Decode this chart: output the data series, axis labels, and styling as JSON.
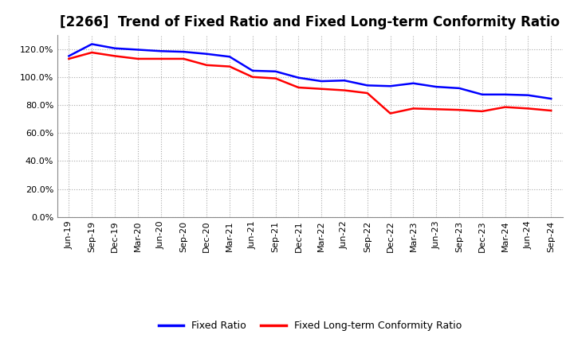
{
  "title": "[2266]  Trend of Fixed Ratio and Fixed Long-term Conformity Ratio",
  "x_labels": [
    "Jun-19",
    "Sep-19",
    "Dec-19",
    "Mar-20",
    "Jun-20",
    "Sep-20",
    "Dec-20",
    "Mar-21",
    "Jun-21",
    "Sep-21",
    "Dec-21",
    "Mar-22",
    "Jun-22",
    "Sep-22",
    "Dec-22",
    "Mar-23",
    "Jun-23",
    "Sep-23",
    "Dec-23",
    "Mar-24",
    "Jun-24",
    "Sep-24"
  ],
  "fixed_ratio": [
    115.0,
    123.5,
    120.5,
    119.5,
    118.5,
    118.0,
    116.5,
    114.5,
    104.5,
    104.0,
    99.5,
    97.0,
    97.5,
    94.0,
    93.5,
    95.5,
    93.0,
    92.0,
    87.5,
    87.5,
    87.0,
    84.5
  ],
  "fixed_lt_ratio": [
    113.0,
    117.5,
    115.0,
    113.0,
    113.0,
    113.0,
    108.5,
    107.5,
    100.0,
    99.0,
    92.5,
    91.5,
    90.5,
    88.5,
    74.0,
    77.5,
    77.0,
    76.5,
    75.5,
    78.5,
    77.5,
    76.0
  ],
  "fixed_ratio_color": "#0000FF",
  "fixed_lt_ratio_color": "#FF0000",
  "ylim": [
    0,
    130
  ],
  "yticks": [
    0,
    20,
    40,
    60,
    80,
    100,
    120
  ],
  "ytick_labels": [
    "0.0%",
    "20.0%",
    "40.0%",
    "60.0%",
    "80.0%",
    "100.0%",
    "120.0%"
  ],
  "background_color": "#FFFFFF",
  "plot_bg_color": "#FFFFFF",
  "grid_color": "#AAAAAA",
  "title_fontsize": 12,
  "tick_fontsize": 8,
  "legend_labels": [
    "Fixed Ratio",
    "Fixed Long-term Conformity Ratio"
  ],
  "line_width": 1.8
}
